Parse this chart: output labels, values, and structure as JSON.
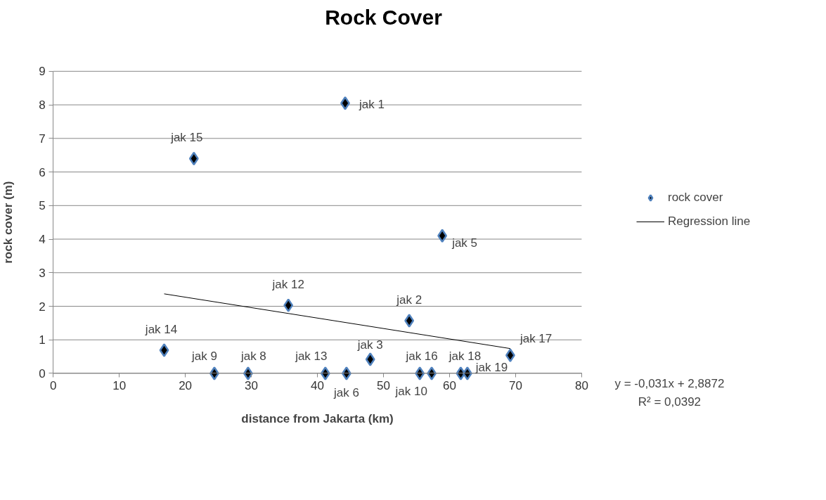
{
  "chart_data": {
    "type": "scatter",
    "title": "Rock Cover",
    "xlabel": "distance from Jakarta (km)",
    "ylabel": "rock cover (m)",
    "xlim": [
      0,
      80
    ],
    "xticks": [
      0,
      10,
      20,
      30,
      40,
      50,
      60,
      70,
      80
    ],
    "ylim": [
      0,
      9
    ],
    "yticks": [
      0,
      1,
      2,
      3,
      4,
      5,
      6,
      7,
      8,
      9
    ],
    "grid": "y",
    "legend": "right",
    "marker": "diamond",
    "series": [
      {
        "name": "rock cover",
        "color": "#000000",
        "x": [
          44.2,
          21.3,
          58.9,
          35.6,
          53.9,
          16.8,
          69.2,
          48.0,
          24.4,
          29.5,
          41.2,
          44.4,
          55.5,
          57.3,
          61.7,
          62.7
        ],
        "values": [
          8.05,
          6.4,
          4.1,
          2.03,
          1.57,
          0.69,
          0.54,
          0.42,
          0,
          0,
          0,
          0,
          0,
          0,
          0,
          0
        ]
      },
      {
        "name": "Regression line",
        "type": "line",
        "marker": "none",
        "color": "#000000",
        "x": [
          16.8,
          69.2
        ],
        "values": [
          2.37,
          0.74
        ]
      }
    ],
    "annotations": [
      {
        "text": "jak 1",
        "x": 44.2,
        "y": 8.05
      },
      {
        "text": "jak 15",
        "x": 21.3,
        "y": 6.4
      },
      {
        "text": "jak 5",
        "x": 58.9,
        "y": 4.1
      },
      {
        "text": "jak 12",
        "x": 35.6,
        "y": 2.03
      },
      {
        "text": "jak 2",
        "x": 53.9,
        "y": 1.57
      },
      {
        "text": "jak 14",
        "x": 16.8,
        "y": 0.69
      },
      {
        "text": "jak 17",
        "x": 69.2,
        "y": 0.54
      },
      {
        "text": "jak 3",
        "x": 48.0,
        "y": 0.42
      },
      {
        "text": "jak 9",
        "x": 24.4,
        "y": 0
      },
      {
        "text": "jak 8",
        "x": 29.5,
        "y": 0
      },
      {
        "text": "jak 13",
        "x": 41.2,
        "y": 0
      },
      {
        "text": "jak 6",
        "x": 44.4,
        "y": 0
      },
      {
        "text": "jak 10",
        "x": 55.5,
        "y": 0
      },
      {
        "text": "jak 16",
        "x": 57.3,
        "y": 0
      },
      {
        "text": "jak 18",
        "x": 61.7,
        "y": 0
      },
      {
        "text": "jak 19",
        "x": 62.7,
        "y": 0
      },
      "y = -0,031x + 2,8872",
      "R² = 0,0392"
    ]
  }
}
